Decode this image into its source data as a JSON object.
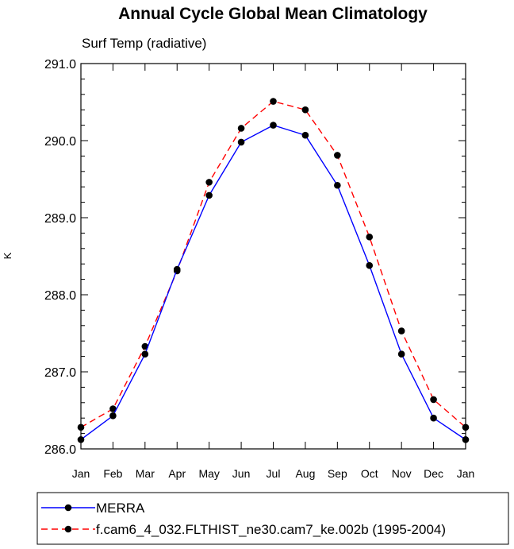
{
  "chart_data": {
    "type": "line",
    "title": "Annual Cycle Global Mean Climatology",
    "subtitle": "Surf Temp (radiative)",
    "xlabel": "",
    "ylabel": "K",
    "categories": [
      "Jan",
      "Feb",
      "Mar",
      "Apr",
      "May",
      "Jun",
      "Jul",
      "Aug",
      "Sep",
      "Oct",
      "Nov",
      "Dec",
      "Jan"
    ],
    "ylim": [
      286.0,
      291.0
    ],
    "yticks": [
      "286.0",
      "287.0",
      "288.0",
      "289.0",
      "290.0",
      "291.0"
    ],
    "grid": false,
    "legend_position": "bottom",
    "series": [
      {
        "name": "MERRA",
        "color": "#0000ff",
        "dash": "solid",
        "values": [
          286.12,
          286.43,
          287.23,
          288.33,
          289.29,
          289.98,
          290.2,
          290.07,
          289.42,
          288.38,
          287.23,
          286.4,
          286.12
        ]
      },
      {
        "name": "f.cam6_4_032.FLTHIST_ne30.cam7_ke.002b (1995-2004)",
        "color": "#ff0000",
        "dash": "dashed",
        "values": [
          286.28,
          286.52,
          287.33,
          288.31,
          289.46,
          290.16,
          290.51,
          290.4,
          289.81,
          288.75,
          287.53,
          286.64,
          286.28
        ]
      }
    ]
  }
}
